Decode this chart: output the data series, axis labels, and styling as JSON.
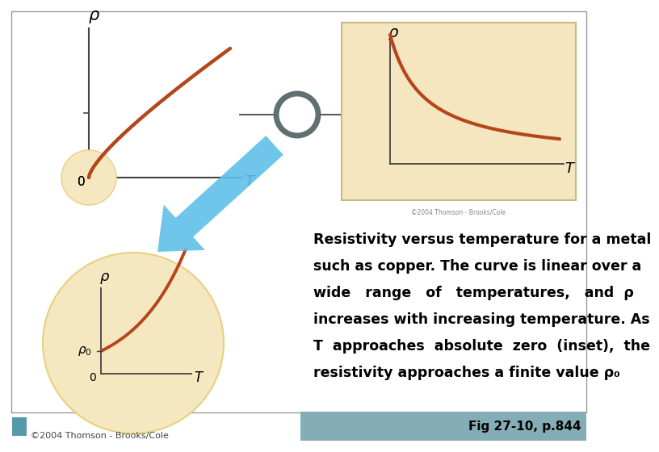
{
  "bg_color": "#ffffff",
  "curve_color": "#b5451b",
  "axis_color": "#444444",
  "inset_bg": "#f5e6c0",
  "inset_border": "#c8b888",
  "circle_color": "#607070",
  "zoom_circle_color": "#f5e8c0",
  "zoom_circle_edge": "#e8d080",
  "arrow_blue": "#60c0e8",
  "arrow_blue_dark": "#40a8d0",
  "text_color": "#000000",
  "fig_ref_color": "#85adb5",
  "fig_label": "Fig 27-10, p.844",
  "copyright_text": "©2004 Thomson - Brooks/Cole",
  "copyright_text2": "©2004 Thomson - Brooks/Cole",
  "outer_border_color": "#999999",
  "main_lines": [
    [
      "Resistivity versus temperature for a metal",
      false
    ],
    [
      "such as copper. The curve is linear over a",
      false
    ],
    [
      "wide   range   of   temperatures,   and  ρ",
      false
    ],
    [
      "increases with increasing temperature. As",
      false
    ],
    [
      "Τ  approaches  absolute  zero  (inset),  the",
      true
    ],
    [
      "resistivity approaches a finite value ρ₀",
      false
    ]
  ]
}
